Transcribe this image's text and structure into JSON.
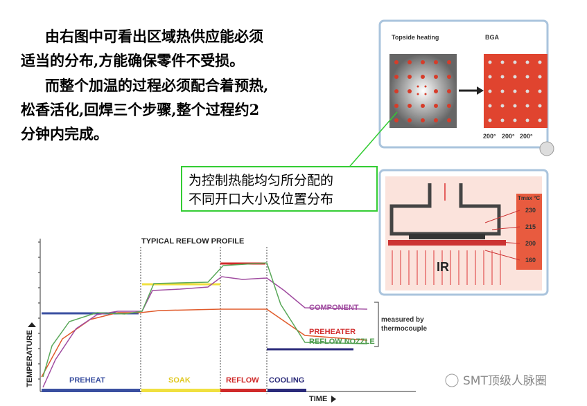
{
  "body_text": {
    "lines": [
      "由右图中可看出区域热供应能必须",
      "适当的分布,方能确保零件不受损。",
      "而整个加温的过程必须配合着预热,",
      "松香活化,回焊三个步骤,整个过程约2",
      "分钟内完成。"
    ]
  },
  "callout": {
    "lines": [
      "为控制热能均匀所分配的",
      "不同开口大小及位置分布"
    ]
  },
  "figure_top": {
    "left_label": "Topside heating",
    "right_label": "BGA",
    "pitch_labels": [
      "200°",
      "200°",
      "200°"
    ]
  },
  "figure_ir": {
    "header": "Tmax °C",
    "temps": [
      "230",
      "215",
      "200",
      "160"
    ],
    "source": "IR"
  },
  "profile": {
    "title": "TYPICAL REFLOW PROFILE",
    "y_label": "TEMPERATURE",
    "x_label": "TIME",
    "phases": [
      "PREHEAT",
      "SOAK",
      "REFLOW",
      "COOLING"
    ],
    "curves": [
      "COMPONENT",
      "PREHEATER",
      "REFLOW NOZZLE"
    ],
    "note": [
      "measured by",
      "thermocouple"
    ]
  },
  "watermark": "SMT顶级人脉圈"
}
